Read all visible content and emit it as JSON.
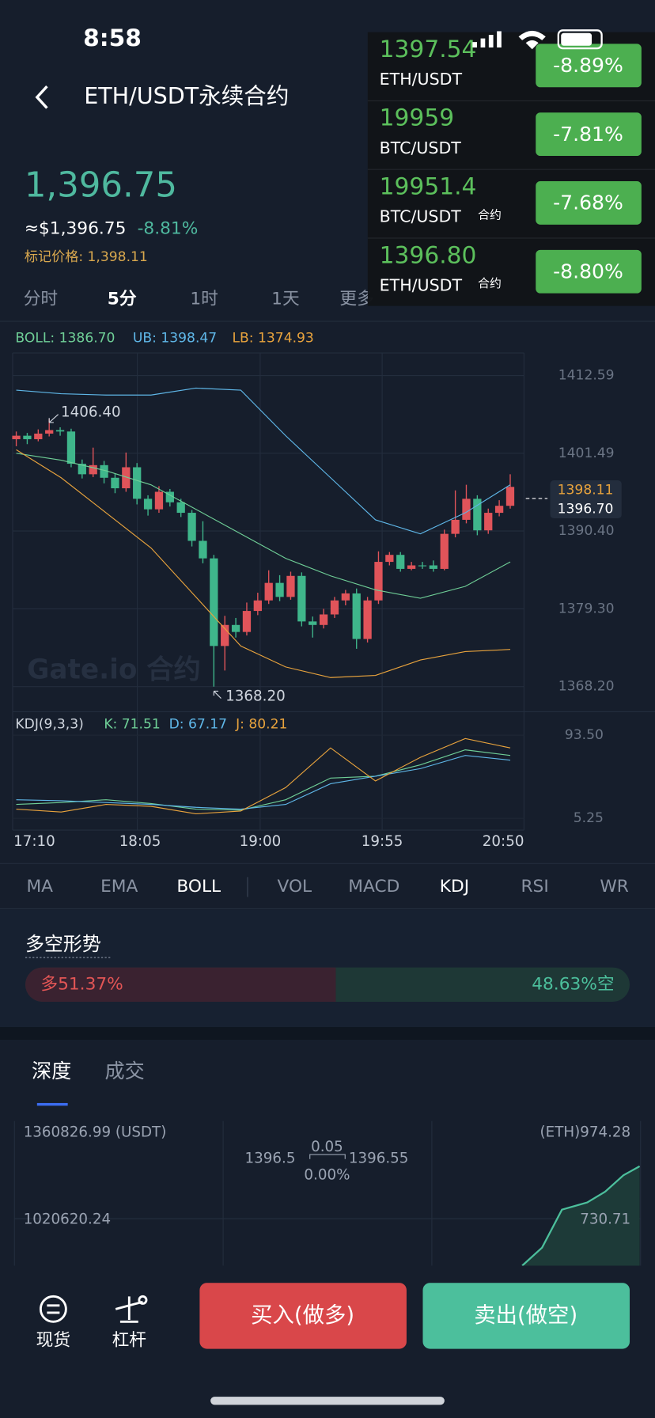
{
  "status_bar": {
    "time": "8:58"
  },
  "header": {
    "title": "ETH/USDT永续合约"
  },
  "price": {
    "last": "1,396.75",
    "usd": "≈$1,396.75",
    "change": "-8.81%",
    "mark_price": "标记价格: 1,398.11"
  },
  "timeframes": [
    "分时",
    "5分",
    "1时",
    "1天",
    "更多"
  ],
  "indicator_legend": {
    "boll": "BOLL: 1386.70",
    "ub": "UB: 1398.47",
    "lb": "LB: 1374.93"
  },
  "chart": {
    "type": "candlestick",
    "ylim": [
      1364.88,
      1415.81
    ],
    "yticks": [
      {
        "value": 1412.59,
        "label": "1412.59"
      },
      {
        "value": 1401.49,
        "label": "1401.49"
      },
      {
        "value": 1390.4,
        "label": "1390.40"
      },
      {
        "value": 1379.3,
        "label": "1379.30"
      },
      {
        "value": 1368.2,
        "label": "1368.20"
      }
    ],
    "high_label": "1406.40",
    "low_label": "1368.20",
    "mark_tag": "1398.11",
    "last_tag": "1396.70",
    "watermark": "Gate.io 合约",
    "x_labels": [
      "17:10",
      "18:05",
      "19:00",
      "19:55",
      "20:50"
    ],
    "up_color": "#e0545a",
    "down_color": "#3fb68b",
    "candles": [
      [
        1403.5,
        1404.6,
        1402.5,
        1404.0
      ],
      [
        1404.0,
        1404.4,
        1402.8,
        1403.5
      ],
      [
        1403.5,
        1404.9,
        1403.2,
        1404.3
      ],
      [
        1404.3,
        1406.4,
        1403.9,
        1404.8
      ],
      [
        1404.8,
        1405.2,
        1404.0,
        1404.6
      ],
      [
        1404.6,
        1405.0,
        1399.5,
        1400.0
      ],
      [
        1400.0,
        1400.6,
        1397.9,
        1398.5
      ],
      [
        1398.5,
        1402.3,
        1398.1,
        1399.8
      ],
      [
        1399.8,
        1400.4,
        1397.2,
        1398.0
      ],
      [
        1398.0,
        1398.6,
        1395.8,
        1396.5
      ],
      [
        1396.5,
        1401.6,
        1396.0,
        1399.5
      ],
      [
        1399.5,
        1400.1,
        1394.2,
        1395.0
      ],
      [
        1395.0,
        1395.5,
        1392.6,
        1393.5
      ],
      [
        1393.5,
        1396.8,
        1393.0,
        1396.0
      ],
      [
        1396.0,
        1396.4,
        1393.9,
        1394.5
      ],
      [
        1394.5,
        1395.0,
        1392.4,
        1393.0
      ],
      [
        1393.0,
        1393.4,
        1388.2,
        1389.0
      ],
      [
        1389.0,
        1391.8,
        1385.8,
        1386.5
      ],
      [
        1386.5,
        1387.0,
        1368.2,
        1374.0
      ],
      [
        1374.0,
        1378.3,
        1370.5,
        1377.0
      ],
      [
        1377.0,
        1378.0,
        1375.2,
        1376.0
      ],
      [
        1376.0,
        1380.2,
        1375.5,
        1379.0
      ],
      [
        1379.0,
        1381.6,
        1378.4,
        1380.5
      ],
      [
        1380.5,
        1384.8,
        1380.0,
        1383.0
      ],
      [
        1383.0,
        1384.1,
        1380.4,
        1381.0
      ],
      [
        1381.0,
        1384.6,
        1380.6,
        1384.0
      ],
      [
        1384.0,
        1384.5,
        1376.8,
        1377.5
      ],
      [
        1377.5,
        1378.2,
        1375.2,
        1377.0
      ],
      [
        1377.0,
        1379.3,
        1376.5,
        1378.5
      ],
      [
        1378.5,
        1381.0,
        1378.0,
        1380.5
      ],
      [
        1380.5,
        1382.0,
        1379.8,
        1381.5
      ],
      [
        1381.5,
        1382.2,
        1373.6,
        1375.0
      ],
      [
        1375.0,
        1381.0,
        1374.5,
        1380.5
      ],
      [
        1380.5,
        1387.5,
        1380.0,
        1386.0
      ],
      [
        1386.0,
        1387.4,
        1385.5,
        1387.0
      ],
      [
        1387.0,
        1387.4,
        1384.6,
        1385.0
      ],
      [
        1385.0,
        1386.0,
        1384.8,
        1385.5
      ],
      [
        1385.5,
        1386.0,
        1385.0,
        1385.5
      ],
      [
        1385.5,
        1386.2,
        1384.6,
        1385.0
      ],
      [
        1385.0,
        1390.6,
        1384.8,
        1390.0
      ],
      [
        1390.0,
        1396.2,
        1389.5,
        1392.0
      ],
      [
        1392.0,
        1397.0,
        1391.5,
        1395.0
      ],
      [
        1395.0,
        1395.5,
        1389.8,
        1390.5
      ],
      [
        1390.5,
        1393.6,
        1390.0,
        1393.0
      ],
      [
        1393.0,
        1394.8,
        1392.5,
        1394.0
      ],
      [
        1394.0,
        1398.5,
        1393.6,
        1396.7
      ]
    ],
    "boll": [
      {
        "color": "#5fb7e8",
        "values": [
          1410.5,
          1410.0,
          1409.8,
          1409.8,
          1410.8,
          1410.5,
          1404.0,
          1398.0,
          1392.0,
          1390.0,
          1393.0,
          1397.0
        ]
      },
      {
        "color": "#6fcf97",
        "values": [
          1401.5,
          1400.5,
          1399.0,
          1397.0,
          1393.5,
          1390.0,
          1386.5,
          1384.0,
          1382.0,
          1380.8,
          1382.5,
          1386.0
        ]
      },
      {
        "color": "#e8a33d",
        "values": [
          1402.0,
          1398.0,
          1393.0,
          1388.0,
          1381.0,
          1374.0,
          1371.0,
          1369.5,
          1369.8,
          1372.0,
          1373.2,
          1373.5
        ]
      }
    ],
    "kdj": {
      "title": "KDJ(9,3,3)",
      "k_label": "K: 71.51",
      "d_label": "D: 67.17",
      "j_label": "J: 80.21",
      "ylim": [
        -7.22,
        110.77
      ],
      "yticks": [
        {
          "value": 93.5,
          "label": "93.50"
        },
        {
          "value": 5.25,
          "label": "5.25"
        }
      ],
      "series": [
        {
          "color": "#6fcf97",
          "values": [
            20,
            22,
            25,
            21,
            15,
            14,
            25,
            48,
            50,
            62,
            78,
            72
          ]
        },
        {
          "color": "#5fb7e8",
          "values": [
            25,
            24,
            22,
            20,
            17,
            15,
            20,
            42,
            50,
            58,
            72,
            67
          ]
        },
        {
          "color": "#e8a33d",
          "values": [
            15,
            12,
            20,
            18,
            10,
            13,
            38,
            80,
            45,
            70,
            90,
            80
          ]
        }
      ]
    }
  },
  "indicator_tabs": [
    "MA",
    "EMA",
    "BOLL",
    "VOL",
    "MACD",
    "KDJ",
    "RSI",
    "WR"
  ],
  "sentiment": {
    "title": "多空形势",
    "long": {
      "value": 51.37,
      "label": "多51.37%"
    },
    "short": {
      "value": 48.63,
      "label": "48.63%空"
    }
  },
  "depth": {
    "tabs": [
      "深度",
      "成交"
    ],
    "left_top": "1360826.99 (USDT)",
    "right_top": "(ETH)974.28",
    "bid": "1396.5",
    "spread": "0.05",
    "ask": "1396.55",
    "spread_pct": "0.00%",
    "left_mid": "1020620.24",
    "right_mid": "730.71"
  },
  "bottom_nav": {
    "spot": "现货",
    "margin": "杠杆",
    "buy": "买入(做多)",
    "sell": "卖出(做空)"
  },
  "ticker_overlay": [
    {
      "price": "1397.54",
      "pair": "ETH/USDT",
      "change": "-8.89%"
    },
    {
      "price": "19959",
      "pair": "BTC/USDT",
      "change": "-7.81%"
    },
    {
      "price": "19951.4",
      "pair": "BTC/USDT",
      "tag": "合约",
      "change": "-7.68%"
    },
    {
      "price": "1396.80",
      "pair": "ETH/USDT",
      "tag": "合约",
      "change": "-8.80%"
    }
  ]
}
